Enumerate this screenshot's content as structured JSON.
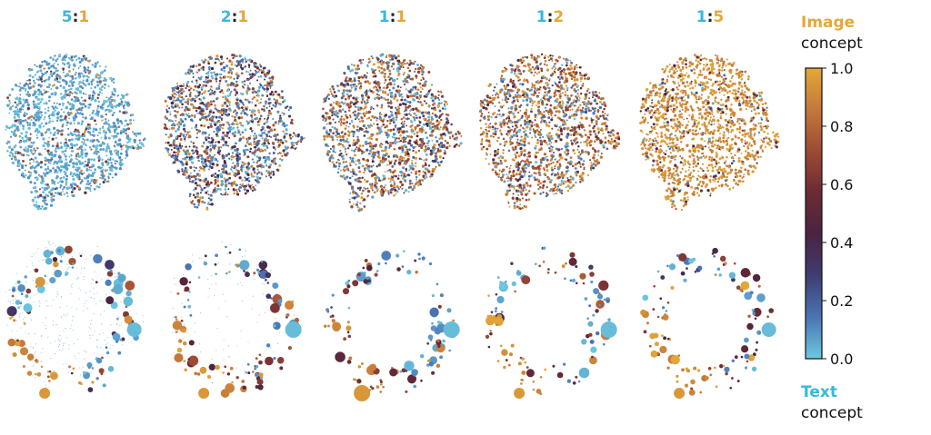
{
  "colors": {
    "text_concept": "#38b8dc",
    "image_concept": "#e3a838",
    "colon": "#222222",
    "colormap": [
      "#6cc8e0",
      "#4a74b4",
      "#3f3d72",
      "#4a2440",
      "#6c2a36",
      "#9c4a34",
      "#c4783a",
      "#e3a838"
    ]
  },
  "colorbar": {
    "ticks": [
      "0.0",
      "0.2",
      "0.4",
      "0.6",
      "0.8",
      "1.0"
    ],
    "top_label_strong": "Image",
    "top_label_plain": "concept",
    "bottom_label_strong": "Text",
    "bottom_label_plain": "concept"
  },
  "chart_data": {
    "type": "scatter",
    "panels": [
      {
        "title_left": "5",
        "title_sep": ":",
        "title_right": "1",
        "image_fraction": 0.17
      },
      {
        "title_left": "2",
        "title_sep": ":",
        "title_right": "1",
        "image_fraction": 0.33
      },
      {
        "title_left": "1",
        "title_sep": ":",
        "title_right": "1",
        "image_fraction": 0.5
      },
      {
        "title_left": "1",
        "title_sep": ":",
        "title_right": "2",
        "image_fraction": 0.67
      },
      {
        "title_left": "1",
        "title_sep": ":",
        "title_right": "5",
        "image_fraction": 0.83
      }
    ],
    "color_range": [
      0.0,
      1.0
    ]
  }
}
